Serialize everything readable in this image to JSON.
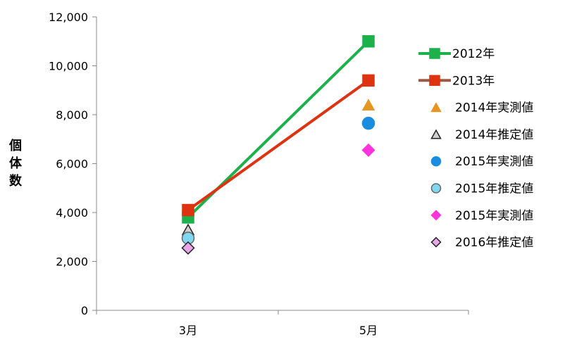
{
  "chart_data": {
    "type": "line",
    "categories": [
      "3月",
      "5月"
    ],
    "ylabel": "個体数",
    "ylim": [
      0,
      12000
    ],
    "yticks": [
      0,
      2000,
      4000,
      6000,
      8000,
      10000,
      12000
    ],
    "ytick_labels": [
      "0",
      "2,000",
      "4,000",
      "6,000",
      "8,000",
      "10,000",
      "12,000"
    ],
    "grid": false,
    "legend_position": "right",
    "series": [
      {
        "name": "2012年",
        "kind": "line",
        "marker": "square",
        "color": "#1db14b",
        "marker_fill": "#1db14b",
        "marker_stroke": "#1db14b",
        "values": [
          3800,
          11000
        ]
      },
      {
        "name": "2013年",
        "kind": "line",
        "marker": "square",
        "color": "#dd3311",
        "legend_line_color": "#9b5a44",
        "marker_fill": "#dd3311",
        "marker_stroke": "#dd3311",
        "values": [
          4100,
          9400
        ]
      },
      {
        "name": "2014年実測値",
        "kind": "point",
        "marker": "triangle",
        "marker_fill": "#e69522",
        "marker_stroke": "#e69522",
        "values": [
          null,
          8400
        ]
      },
      {
        "name": "2014年推定値",
        "kind": "point",
        "marker": "triangle",
        "marker_fill": "#cfcfcf",
        "marker_stroke": "#222222",
        "values": [
          3300,
          null
        ]
      },
      {
        "name": "2015年実測値",
        "kind": "point",
        "marker": "circle",
        "marker_fill": "#1a8de0",
        "marker_stroke": "#1a8de0",
        "values": [
          null,
          7650
        ]
      },
      {
        "name": "2015年推定値",
        "kind": "point",
        "marker": "circle",
        "marker_fill": "#7fd8f0",
        "marker_stroke": "#666666",
        "values": [
          2950,
          null
        ]
      },
      {
        "name": "2015年実測値",
        "kind": "point",
        "marker": "diamond",
        "marker_fill": "#ff33dd",
        "marker_stroke": "#ff33dd",
        "values": [
          null,
          6550
        ]
      },
      {
        "name": "2016年推定値",
        "kind": "point",
        "marker": "diamond",
        "marker_fill": "#e8a6e8",
        "marker_stroke": "#222222",
        "values": [
          2550,
          null
        ]
      }
    ]
  }
}
